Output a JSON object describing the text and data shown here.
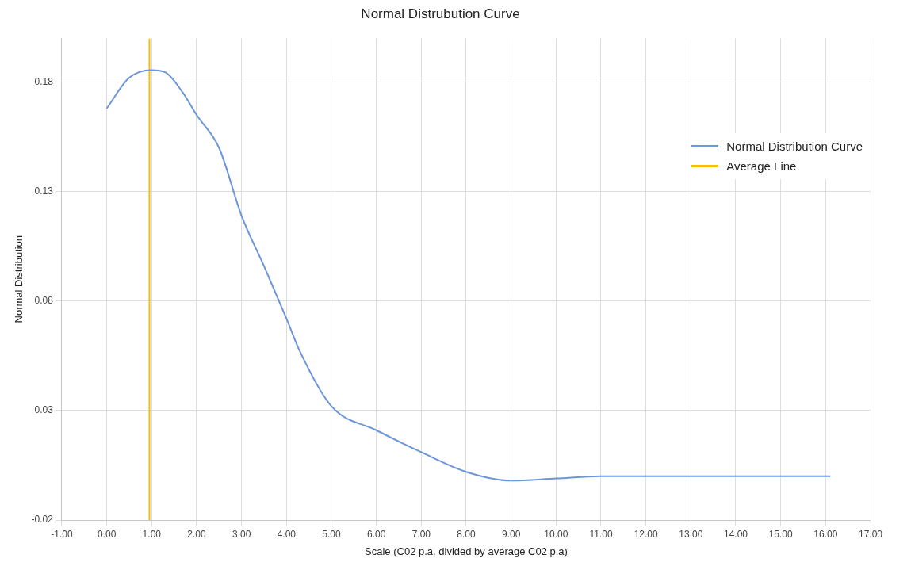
{
  "chart_data": {
    "type": "line",
    "title": "Normal Distrubution Curve",
    "xlabel": "Scale (C02 p.a. divided by average C02 p.a)",
    "ylabel": "Normal Distribution",
    "series": [
      {
        "name": "Normal Distribution Curve",
        "color": "#6d95d9",
        "x": [
          0,
          0.5,
          1,
          1.3,
          1.7,
          2,
          2.5,
          3,
          3.5,
          4,
          4.3,
          5,
          6,
          7,
          8,
          9,
          10,
          11,
          12,
          13,
          14,
          15,
          16.1
        ],
        "values": [
          0.168,
          0.182,
          0.1855,
          0.1845,
          0.175,
          0.165,
          0.15,
          0.119,
          0.096,
          0.072,
          0.057,
          0.032,
          0.021,
          0.011,
          0.002,
          -0.002,
          -0.001,
          0,
          0,
          0,
          0,
          0,
          0
        ]
      },
      {
        "name": "Average Line",
        "color": "#fbbc04",
        "x": [
          0.95,
          0.95
        ],
        "values": [
          -0.02,
          0.2
        ]
      }
    ],
    "xlim": [
      -1,
      17
    ],
    "xticks": [
      {
        "value": -1,
        "label": "-1.00"
      },
      {
        "value": 0,
        "label": "0.00"
      },
      {
        "value": 1,
        "label": "1.00"
      },
      {
        "value": 2,
        "label": "2.00"
      },
      {
        "value": 3,
        "label": "3.00"
      },
      {
        "value": 4,
        "label": "4.00"
      },
      {
        "value": 5,
        "label": "5.00"
      },
      {
        "value": 6,
        "label": "6.00"
      },
      {
        "value": 7,
        "label": "7.00"
      },
      {
        "value": 8,
        "label": "8.00"
      },
      {
        "value": 9,
        "label": "9.00"
      },
      {
        "value": 10,
        "label": "10.00"
      },
      {
        "value": 11,
        "label": "11.00"
      },
      {
        "value": 12,
        "label": "12.00"
      },
      {
        "value": 13,
        "label": "13.00"
      },
      {
        "value": 14,
        "label": "14.00"
      },
      {
        "value": 15,
        "label": "15.00"
      },
      {
        "value": 16,
        "label": "16.00"
      },
      {
        "value": 17,
        "label": "17.00"
      }
    ],
    "ylim": [
      -0.02,
      0.2
    ],
    "yticks": [
      -0.02,
      0.03,
      0.08,
      0.13,
      0.18
    ],
    "grid": true,
    "legend": "top right",
    "marker": "none",
    "line_style": "solid"
  }
}
